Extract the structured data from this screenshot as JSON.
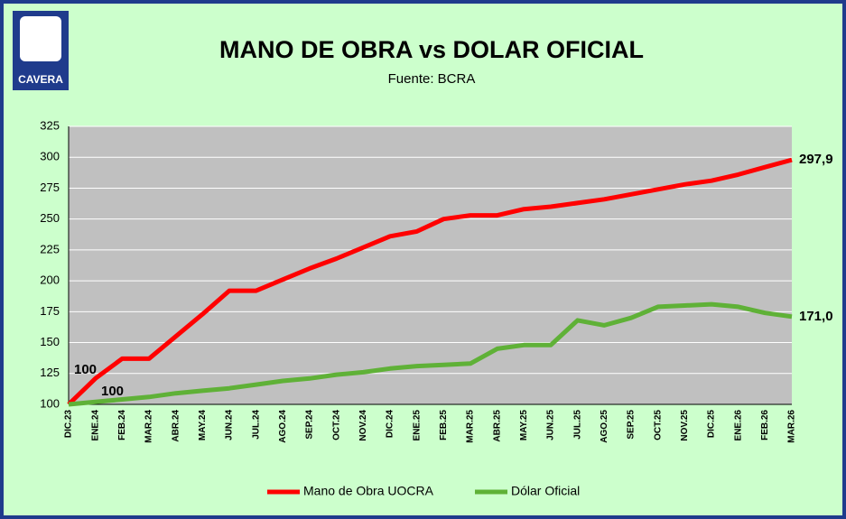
{
  "chart_data": {
    "type": "line",
    "title": "MANO DE OBRA vs DOLAR OFICIAL",
    "subtitle": "Fuente: BCRA",
    "logo": "CAVERA",
    "categories": [
      "DIC.23",
      "ENE.24",
      "FEB.24",
      "MAR.24",
      "ABR.24",
      "MAY.24",
      "JUN.24",
      "JUL.24",
      "AGO.24",
      "SEP.24",
      "OCT.24",
      "NOV.24",
      "DIC.24",
      "ENE.25",
      "FEB.25",
      "MAR.25",
      "ABR.25",
      "MAY.25",
      "JUN.25",
      "JUL.25",
      "AGO.25",
      "SEP.25",
      "OCT.25",
      "NOV.25",
      "DIC.25",
      "ENE.26",
      "FEB.26",
      "MAR.26"
    ],
    "series": [
      {
        "name": "Mano de Obra UOCRA",
        "color": "#ff0000",
        "values": [
          100,
          121,
          137,
          137,
          155,
          173,
          192,
          192,
          201,
          210,
          218,
          227,
          236,
          240,
          250,
          253,
          253,
          258,
          260,
          263,
          266,
          270,
          274,
          278,
          281,
          286,
          292,
          297.9
        ],
        "value_labels": [
          "100",
          null,
          null,
          null,
          null,
          null,
          null,
          null,
          null,
          null,
          null,
          null,
          null,
          null,
          null,
          null,
          null,
          null,
          null,
          null,
          null,
          null,
          null,
          null,
          null,
          null,
          null,
          "297,9"
        ]
      },
      {
        "name": "Dólar Oficial",
        "color": "#5fb137",
        "values": [
          100,
          102,
          104,
          106,
          109,
          111,
          113,
          116,
          119,
          121,
          124,
          126,
          129,
          131,
          132,
          133,
          145,
          148,
          148,
          168,
          164,
          170,
          179,
          180,
          181,
          179,
          174,
          171
        ],
        "value_labels": [
          "100",
          null,
          null,
          null,
          null,
          null,
          null,
          null,
          null,
          null,
          null,
          null,
          null,
          null,
          null,
          null,
          null,
          null,
          null,
          null,
          null,
          null,
          null,
          null,
          null,
          null,
          null,
          "171,0"
        ]
      }
    ],
    "ylim": [
      100,
      325
    ],
    "yticks": [
      100,
      125,
      150,
      175,
      200,
      225,
      250,
      275,
      300,
      325
    ],
    "grid": true,
    "legend": "bottom"
  }
}
